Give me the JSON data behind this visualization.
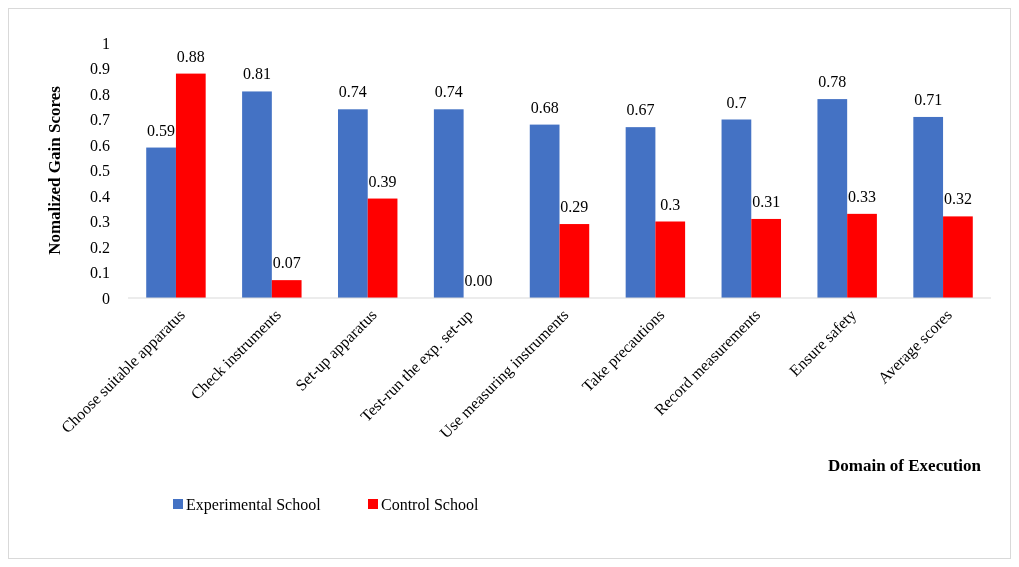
{
  "chart_data": {
    "type": "bar",
    "xlabel": "Domain of Execution",
    "ylabel": "Nomalized Gain Scores",
    "categories": [
      "Choose suitable apparatus",
      "Check instruments",
      "Set-up apparatus",
      "Test-run the exp. set-up",
      "Use measuring instruments",
      "Take precautions",
      "Record measurements",
      "Ensure safety",
      "Average  scores"
    ],
    "series": [
      {
        "name": "Experimental School",
        "color": "#4472c4",
        "values": [
          0.59,
          0.81,
          0.74,
          0.74,
          0.68,
          0.67,
          0.7,
          0.78,
          0.71
        ],
        "value_labels": [
          "0.59",
          "0.81",
          "0.74",
          "0.74",
          "0.68",
          "0.67",
          "0.7",
          "0.78",
          "0.71"
        ]
      },
      {
        "name": "Control School",
        "color": "#ff0000",
        "values": [
          0.88,
          0.07,
          0.39,
          0.0,
          0.29,
          0.3,
          0.31,
          0.33,
          0.32
        ],
        "value_labels": [
          "0.88",
          "0.07",
          "0.39",
          "0.00",
          "0.29",
          "0.3",
          "0.31",
          "0.33",
          "0.32"
        ]
      }
    ],
    "ylim": [
      0,
      1
    ],
    "yticks": [
      0,
      0.1,
      0.2,
      0.3,
      0.4,
      0.5,
      0.6,
      0.7,
      0.8,
      0.9,
      1
    ],
    "grid": false,
    "legend": "bottom"
  }
}
